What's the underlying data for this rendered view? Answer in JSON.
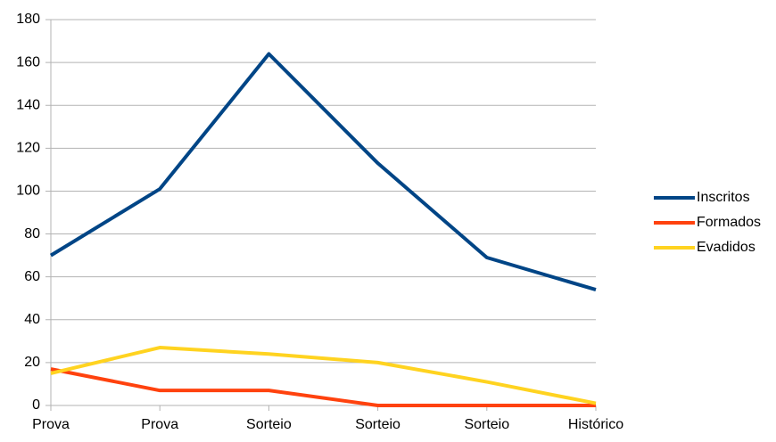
{
  "chart_data": {
    "type": "line",
    "categories": [
      "Prova",
      "Prova",
      "Sorteio",
      "Sorteio",
      "Sorteio",
      "Histórico"
    ],
    "series": [
      {
        "name": "Inscritos",
        "color": "#004586",
        "values": [
          70,
          101,
          164,
          113,
          69,
          54
        ]
      },
      {
        "name": "Formados",
        "color": "#ff420e",
        "values": [
          17,
          7,
          7,
          0,
          0,
          0
        ]
      },
      {
        "name": "Evadidos",
        "color": "#ffd320",
        "values": [
          15,
          27,
          24,
          20,
          11,
          1
        ]
      }
    ],
    "ylim": [
      0,
      180
    ],
    "yticks": [
      0,
      20,
      40,
      60,
      80,
      100,
      120,
      140,
      160,
      180
    ],
    "grid": true,
    "legend": "right"
  }
}
